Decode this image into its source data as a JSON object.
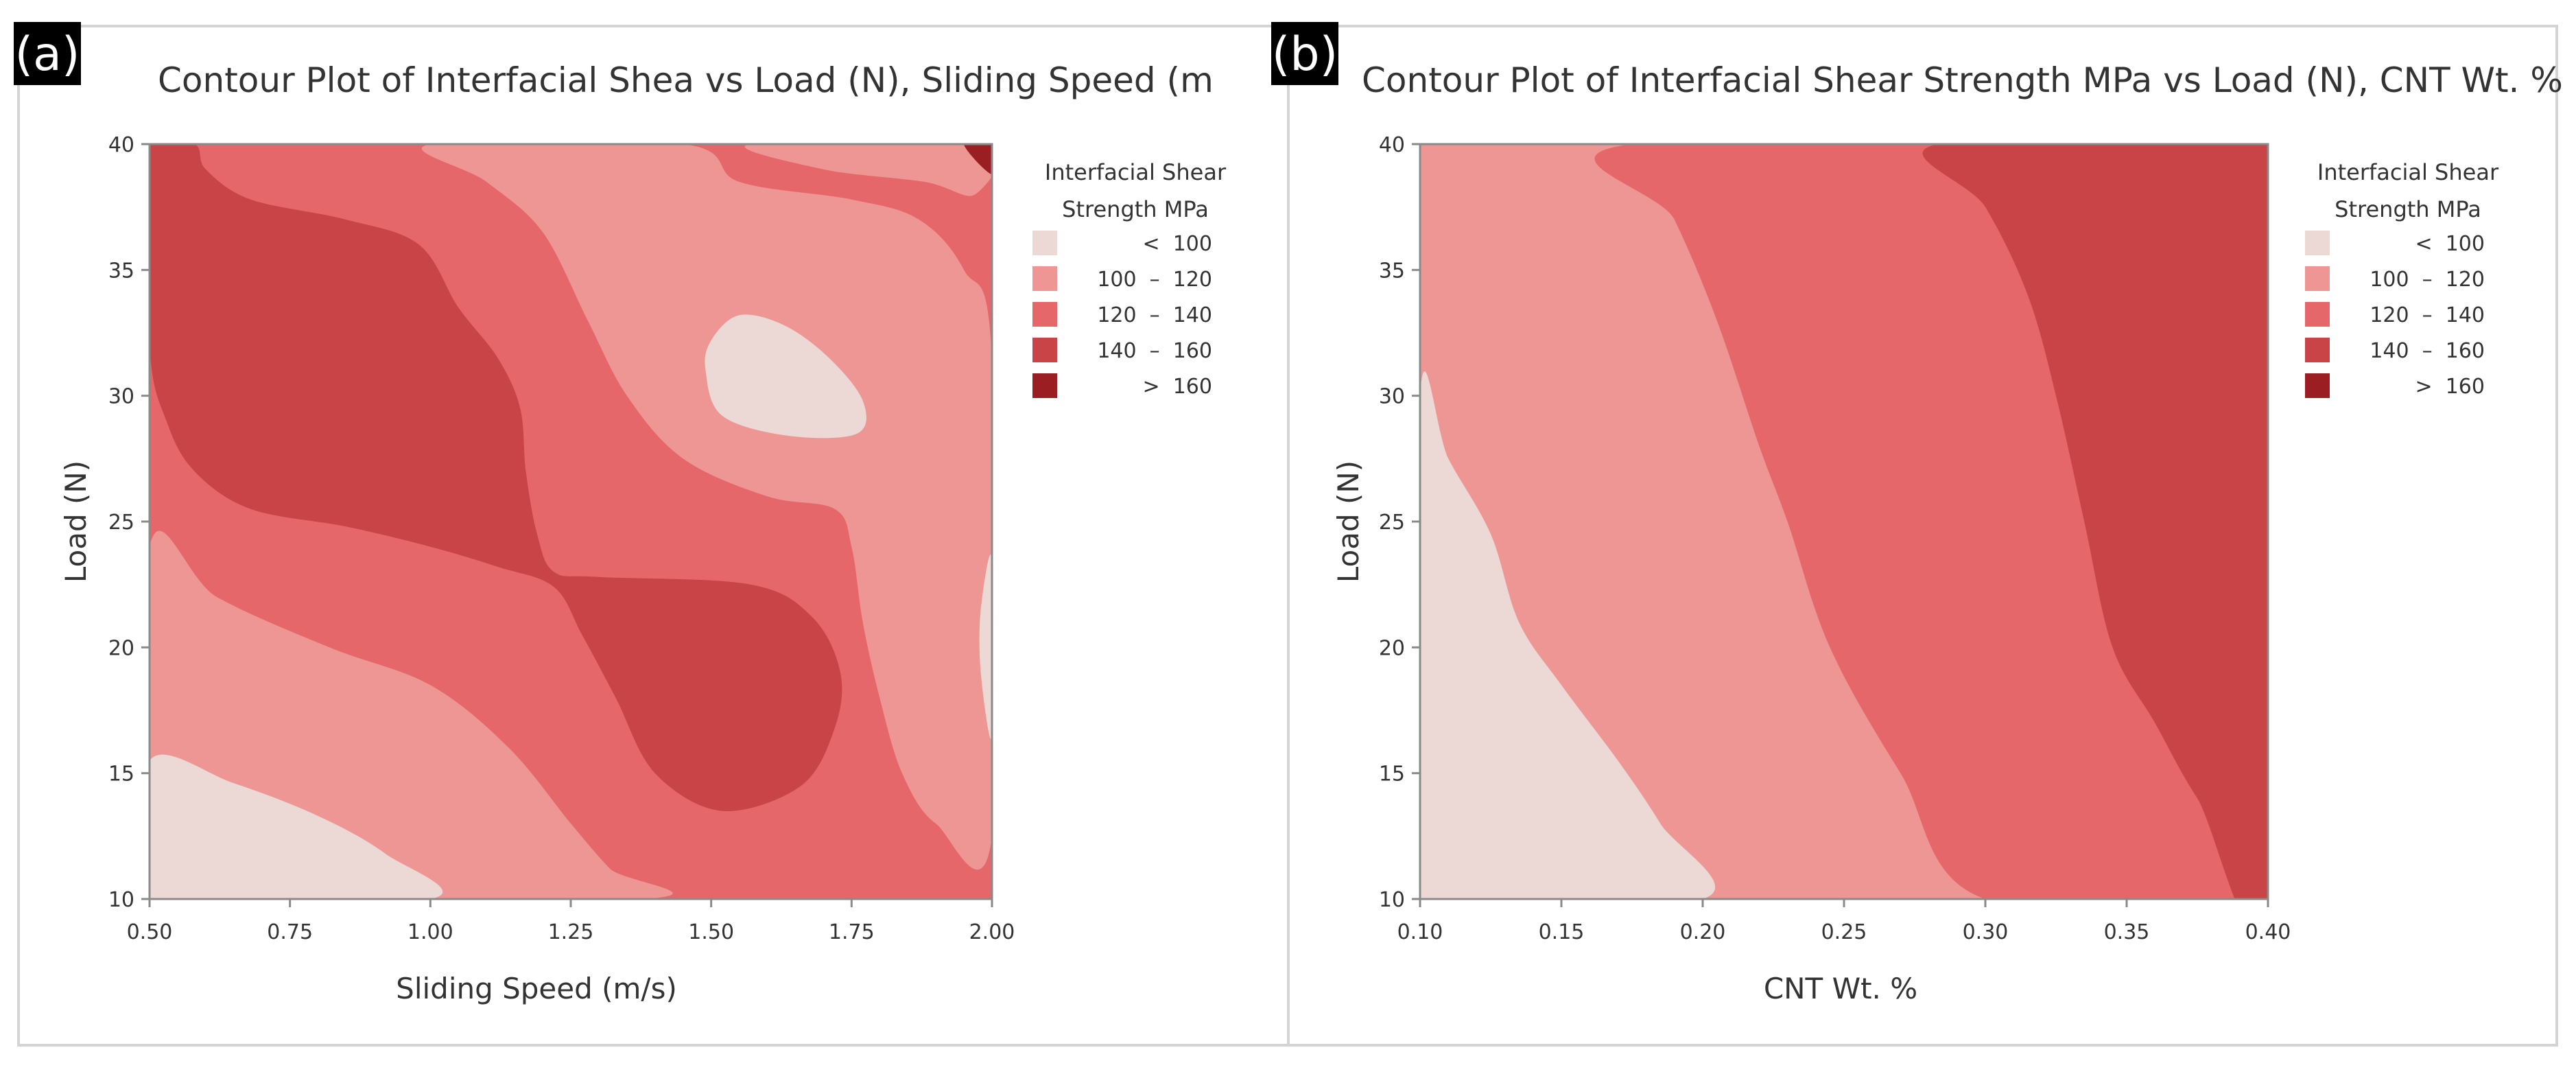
{
  "figure": {
    "panel_a_label": "(a)",
    "panel_b_label": "(b)"
  },
  "legend": {
    "title_line1": "Interfacial Shear",
    "title_line2": "Strength MPa",
    "entries": [
      {
        "range_label": "<  100",
        "color": "#ecd8d4"
      },
      {
        "range_label": "100  –  120",
        "color": "#ee9694"
      },
      {
        "range_label": "120  –  140",
        "color": "#e5676a"
      },
      {
        "range_label": "140  –  160",
        "color": "#c94446"
      },
      {
        "range_label": ">  160",
        "color": "#9a1e22"
      }
    ]
  },
  "chart_data": [
    {
      "type": "heatmap",
      "subtype": "contour",
      "panel": "(a)",
      "title": "Contour Plot of Interfacial Shea vs Load (N), Sliding Speed (m",
      "xlabel": "Sliding Speed (m/s)",
      "ylabel": "Load (N)",
      "xlim": [
        0.5,
        2.0
      ],
      "ylim": [
        10,
        40
      ],
      "x_ticks": [
        "0.50",
        "0.75",
        "1.00",
        "1.25",
        "1.50",
        "1.75",
        "2.00"
      ],
      "y_ticks": [
        "10",
        "15",
        "20",
        "25",
        "30",
        "35",
        "40"
      ],
      "z_label": "Interfacial Shear Strength MPa",
      "levels": [
        "< 100",
        "100 – 120",
        "120 – 140",
        "140 – 160",
        "> 160"
      ],
      "regions": [
        {
          "level": "120 – 140",
          "polygon": [
            [
              0.5,
              10
            ],
            [
              2.0,
              10
            ],
            [
              2.0,
              40
            ],
            [
              0.5,
              40
            ]
          ]
        },
        {
          "level": "100 – 120",
          "polygon": [
            [
              0.5,
              10
            ],
            [
              0.5,
              24
            ],
            [
              0.62,
              22
            ],
            [
              0.82,
              20
            ],
            [
              1.0,
              18.5
            ],
            [
              1.14,
              16
            ],
            [
              1.25,
              13
            ],
            [
              1.32,
              11.2
            ],
            [
              1.38,
              10
            ]
          ]
        },
        {
          "level": "100 – 120",
          "polygon": [
            [
              1.0,
              40
            ],
            [
              1.1,
              38.5
            ],
            [
              1.2,
              36.5
            ],
            [
              1.28,
              33
            ],
            [
              1.35,
              30
            ],
            [
              1.45,
              27.5
            ],
            [
              1.6,
              26
            ],
            [
              1.72,
              25.5
            ],
            [
              1.75,
              24
            ],
            [
              1.77,
              21
            ],
            [
              1.8,
              18
            ],
            [
              1.84,
              15
            ],
            [
              1.9,
              13
            ],
            [
              2.0,
              12.5
            ],
            [
              2.0,
              31.5
            ],
            [
              1.95,
              35
            ],
            [
              1.87,
              37
            ],
            [
              1.75,
              37.8
            ],
            [
              1.55,
              38.5
            ],
            [
              1.45,
              40
            ]
          ]
        },
        {
          "level": "100 – 120",
          "polygon": [
            [
              1.57,
              40
            ],
            [
              1.7,
              39
            ],
            [
              1.88,
              38.5
            ],
            [
              1.97,
              38
            ],
            [
              1.98,
              40
            ]
          ]
        },
        {
          "level": "< 100",
          "polygon": [
            [
              1.5,
              32.2
            ],
            [
              1.55,
              33.2
            ],
            [
              1.63,
              32.8
            ],
            [
              1.71,
              31.5
            ],
            [
              1.77,
              29.8
            ],
            [
              1.76,
              28.5
            ],
            [
              1.64,
              28.4
            ],
            [
              1.52,
              29.2
            ],
            [
              1.49,
              31
            ]
          ]
        },
        {
          "level": "< 100",
          "polygon": [
            [
              0.5,
              10
            ],
            [
              0.5,
              15.5
            ],
            [
              0.65,
              14.6
            ],
            [
              0.8,
              13.3
            ],
            [
              0.92,
              11.8
            ],
            [
              1.0,
              10
            ]
          ]
        },
        {
          "level": "< 100",
          "polygon": [
            [
              2.0,
              16.5
            ],
            [
              1.98,
              19
            ],
            [
              1.98,
              21.5
            ],
            [
              2.0,
              23.5
            ]
          ]
        },
        {
          "level": "140 – 160",
          "polygon": [
            [
              0.5,
              40
            ],
            [
              0.5,
              32
            ],
            [
              0.53,
              29
            ],
            [
              0.58,
              27
            ],
            [
              0.68,
              25.5
            ],
            [
              0.85,
              24.8
            ],
            [
              1.0,
              24
            ],
            [
              1.12,
              23.2
            ],
            [
              1.22,
              22.4
            ],
            [
              1.27,
              20.5
            ],
            [
              1.33,
              18
            ],
            [
              1.4,
              15
            ],
            [
              1.52,
              13.5
            ],
            [
              1.66,
              14.5
            ],
            [
              1.72,
              16.8
            ],
            [
              1.73,
              19
            ],
            [
              1.68,
              21.2
            ],
            [
              1.57,
              22.5
            ],
            [
              1.3,
              22.8
            ],
            [
              1.22,
              23
            ],
            [
              1.19,
              24.5
            ],
            [
              1.17,
              27
            ],
            [
              1.16,
              29.5
            ],
            [
              1.12,
              31.5
            ],
            [
              1.05,
              33.5
            ],
            [
              0.98,
              36
            ],
            [
              0.85,
              37
            ],
            [
              0.68,
              37.8
            ],
            [
              0.6,
              39
            ],
            [
              0.58,
              40
            ]
          ]
        },
        {
          "level": "> 160",
          "polygon": [
            [
              1.95,
              40
            ],
            [
              2.0,
              40
            ],
            [
              2.0,
              38.8
            ]
          ]
        }
      ]
    },
    {
      "type": "heatmap",
      "subtype": "contour",
      "panel": "(b)",
      "title": "Contour Plot of Interfacial Shear Strength MPa vs Load (N), CNT Wt. %",
      "xlabel": "CNT Wt. %",
      "ylabel": "Load (N)",
      "xlim": [
        0.1,
        0.4
      ],
      "ylim": [
        10,
        40
      ],
      "x_ticks": [
        "0.10",
        "0.15",
        "0.20",
        "0.25",
        "0.30",
        "0.35",
        "0.40"
      ],
      "y_ticks": [
        "10",
        "15",
        "20",
        "25",
        "30",
        "35",
        "40"
      ],
      "z_label": "Interfacial Shear Strength MPa",
      "levels": [
        "< 100",
        "100 – 120",
        "120 – 140",
        "140 – 160",
        "> 160"
      ],
      "regions": [
        {
          "level": "100 – 120",
          "polygon": [
            [
              0.1,
              10
            ],
            [
              0.4,
              10
            ],
            [
              0.4,
              40
            ],
            [
              0.1,
              40
            ]
          ]
        },
        {
          "level": "120 – 140",
          "polygon": [
            [
              0.3,
              10
            ],
            [
              0.4,
              10
            ],
            [
              0.4,
              40
            ],
            [
              0.175,
              40
            ],
            [
              0.19,
              37
            ],
            [
              0.205,
              33
            ],
            [
              0.22,
              28
            ],
            [
              0.23,
              25
            ],
            [
              0.245,
              20
            ],
            [
              0.27,
              15
            ]
          ]
        },
        {
          "level": "140 – 160",
          "polygon": [
            [
              0.4,
              10
            ],
            [
              0.4,
              40
            ],
            [
              0.283,
              40
            ],
            [
              0.3,
              37.5
            ],
            [
              0.315,
              34
            ],
            [
              0.325,
              30
            ],
            [
              0.335,
              25
            ],
            [
              0.345,
              20
            ],
            [
              0.36,
              17
            ],
            [
              0.375,
              14
            ]
          ]
        },
        {
          "level": "< 100",
          "polygon": [
            [
              0.1,
              10
            ],
            [
              0.1,
              30
            ],
            [
              0.11,
              27.5
            ],
            [
              0.125,
              24.5
            ],
            [
              0.135,
              21
            ],
            [
              0.15,
              18.5
            ],
            [
              0.17,
              15.5
            ],
            [
              0.185,
              13
            ],
            [
              0.2,
              10
            ]
          ]
        }
      ]
    }
  ]
}
